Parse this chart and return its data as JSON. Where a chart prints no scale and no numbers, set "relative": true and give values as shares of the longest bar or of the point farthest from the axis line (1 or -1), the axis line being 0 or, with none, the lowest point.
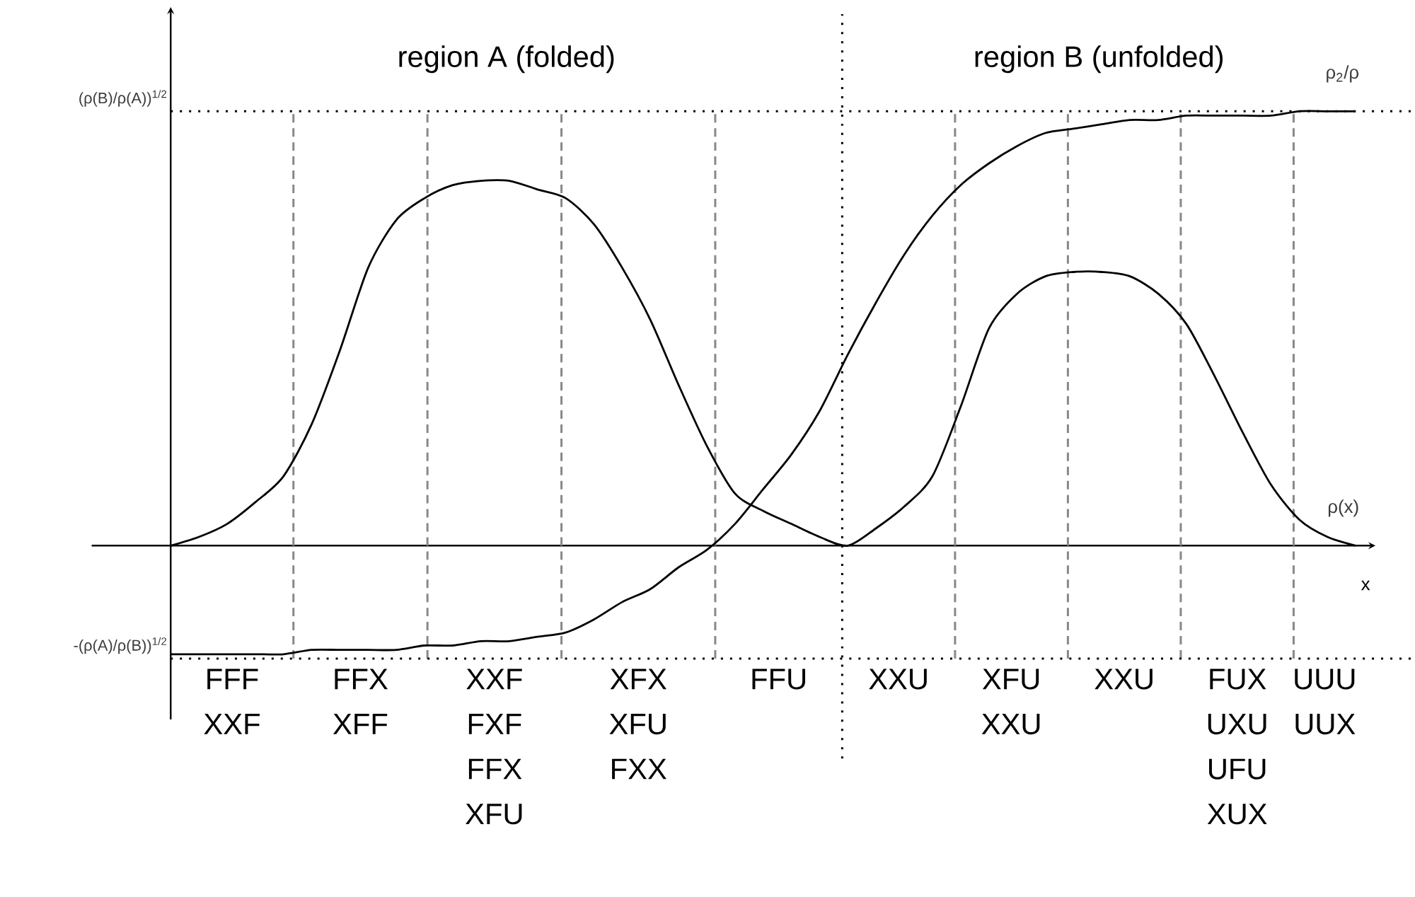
{
  "chart_data": {
    "type": "line",
    "relative": true,
    "xlabel": "x",
    "categories": [
      null,
      null,
      null,
      null,
      null,
      null,
      null,
      null,
      null,
      null,
      null,
      null,
      null,
      null,
      null,
      null,
      null,
      null,
      null,
      null,
      null,
      null,
      null,
      null,
      null,
      null,
      null,
      null,
      null,
      null,
      null,
      null,
      null,
      null,
      null,
      null,
      null,
      null,
      null,
      null,
      null,
      null,
      null
    ],
    "series": [
      {
        "name": "ρ(x)",
        "color": "#000000",
        "values": [
          0,
          0.02,
          0.05,
          0.1,
          0.16,
          0.28,
          0.45,
          0.64,
          0.75,
          0.8,
          0.83,
          0.84,
          0.84,
          0.82,
          0.8,
          0.74,
          0.64,
          0.52,
          0.37,
          0.23,
          0.12,
          0.08,
          0.05,
          0.02,
          0,
          0.04,
          0.09,
          0.16,
          0.32,
          0.5,
          0.58,
          0.62,
          0.63,
          0.63,
          0.62,
          0.58,
          0.51,
          0.39,
          0.26,
          0.14,
          0.06,
          0.02,
          0
        ]
      },
      {
        "name": "ρ$_{2}$/ρ",
        "color": "#000000",
        "values": [
          -0.25,
          -0.25,
          -0.25,
          -0.25,
          -0.25,
          -0.24,
          -0.24,
          -0.24,
          -0.24,
          -0.23,
          -0.23,
          -0.22,
          -0.22,
          -0.21,
          -0.2,
          -0.17,
          -0.13,
          -0.1,
          -0.05,
          -0.01,
          0.05,
          0.13,
          0.21,
          0.31,
          0.44,
          0.56,
          0.67,
          0.76,
          0.83,
          0.88,
          0.92,
          0.95,
          0.96,
          0.97,
          0.98,
          0.98,
          0.99,
          0.99,
          0.99,
          0.99,
          1.0,
          1.0,
          1.0
        ]
      }
    ],
    "ref_lines": [
      {
        "axis": "y",
        "value": 1,
        "label": "(ρ(B)/ρ(A))$^{1/2}$",
        "color": "#000000",
        "line_style": "dotted"
      },
      {
        "axis": "y",
        "value": -0.26,
        "label": "-(ρ(A)/ρ(B))$^{1/2}$",
        "color": "#000000",
        "line_style": "dotted"
      }
    ],
    "annotations": [
      "region A (folded)",
      "region B (unfolded)",
      "FFF XXF",
      "FFX XFF",
      "XXF FXF FFX XFU",
      "XFX XFU FXX",
      "FFU",
      "XXU",
      "XFU XXU",
      "XXU",
      "FUX UXU UFU XUX",
      "UUU UUX"
    ]
  }
}
